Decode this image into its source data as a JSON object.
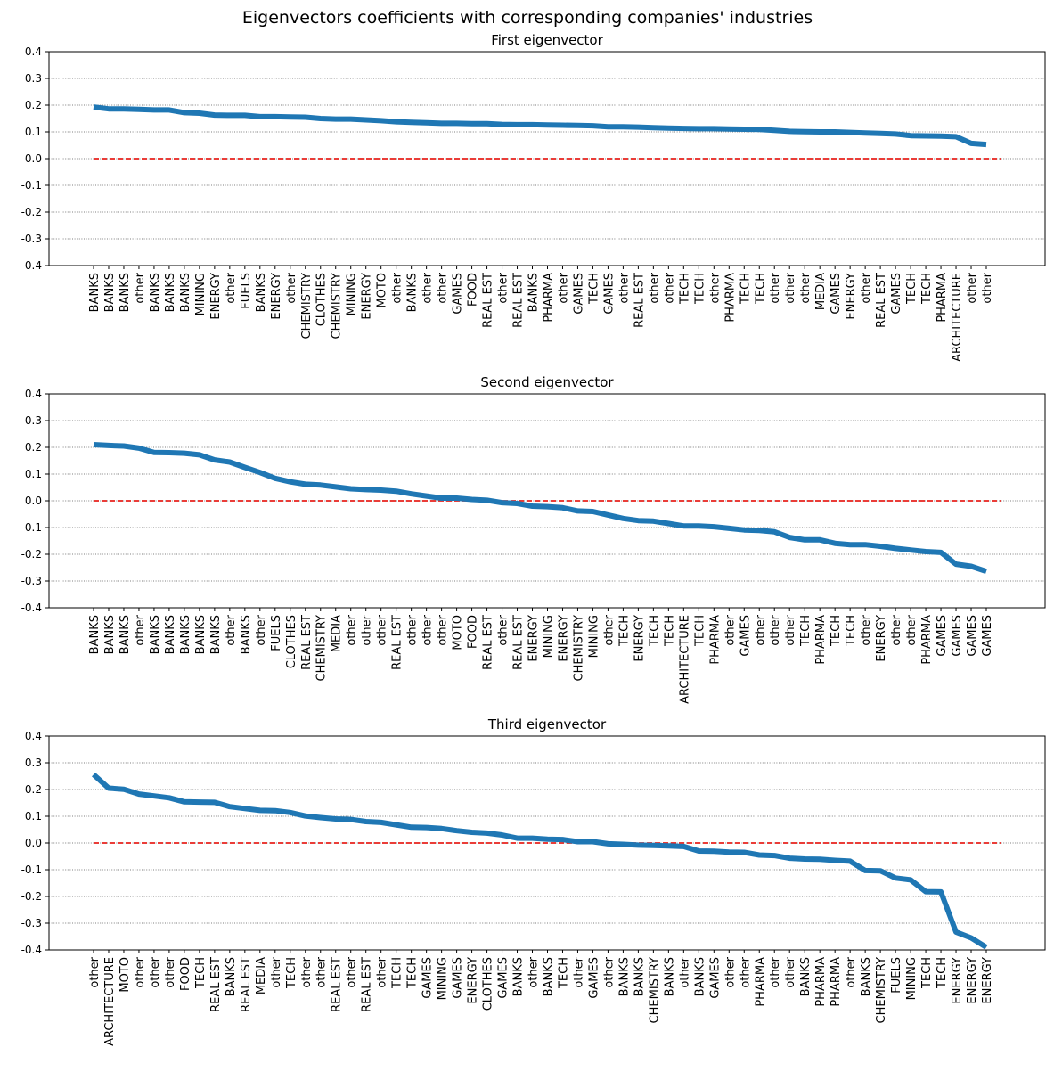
{
  "suptitle": "Eigenvectors coefficients with corresponding companies' industries",
  "chart_data": [
    {
      "type": "line",
      "title": "First eigenvector",
      "ylim": [
        -0.4,
        0.4
      ],
      "yticks": [
        -0.4,
        -0.3,
        -0.2,
        -0.1,
        0.0,
        0.1,
        0.2,
        0.3,
        0.4
      ],
      "grid": "y dotted",
      "reference_line": 0,
      "categories": [
        "BANKS",
        "BANKS",
        "BANKS",
        "other",
        "BANKS",
        "BANKS",
        "BANKS",
        "MINING",
        "ENERGY",
        "other",
        "FUELS",
        "BANKS",
        "ENERGY",
        "other",
        "CHEMISTRY",
        "CLOTHES",
        "CHEMISTRY",
        "MINING",
        "ENERGY",
        "MOTO",
        "other",
        "BANKS",
        "other",
        "other",
        "GAMES",
        "FOOD",
        "REAL EST",
        "other",
        "REAL EST",
        "BANKS",
        "PHARMA",
        "other",
        "GAMES",
        "TECH",
        "GAMES",
        "other",
        "REAL EST",
        "other",
        "other",
        "TECH",
        "TECH",
        "other",
        "PHARMA",
        "TECH",
        "TECH",
        "other",
        "other",
        "other",
        "MEDIA",
        "GAMES",
        "ENERGY",
        "other",
        "REAL EST",
        "GAMES",
        "TECH",
        "TECH",
        "PHARMA",
        "ARCHITECTURE",
        "other",
        "other"
      ],
      "values": [
        0.193,
        0.186,
        0.186,
        0.184,
        0.182,
        0.182,
        0.172,
        0.17,
        0.163,
        0.162,
        0.162,
        0.157,
        0.157,
        0.156,
        0.155,
        0.15,
        0.148,
        0.148,
        0.145,
        0.142,
        0.138,
        0.136,
        0.134,
        0.132,
        0.132,
        0.131,
        0.131,
        0.128,
        0.127,
        0.127,
        0.126,
        0.125,
        0.124,
        0.123,
        0.119,
        0.119,
        0.118,
        0.116,
        0.114,
        0.113,
        0.112,
        0.112,
        0.111,
        0.11,
        0.109,
        0.106,
        0.102,
        0.101,
        0.1,
        0.1,
        0.098,
        0.096,
        0.094,
        0.092,
        0.086,
        0.085,
        0.084,
        0.082,
        0.057,
        0.053
      ]
    },
    {
      "type": "line",
      "title": "Second eigenvector",
      "ylim": [
        -0.4,
        0.4
      ],
      "yticks": [
        -0.4,
        -0.3,
        -0.2,
        -0.1,
        0.0,
        0.1,
        0.2,
        0.3,
        0.4
      ],
      "grid": "y dotted",
      "reference_line": 0,
      "categories": [
        "BANKS",
        "BANKS",
        "BANKS",
        "other",
        "BANKS",
        "BANKS",
        "BANKS",
        "BANKS",
        "BANKS",
        "other",
        "BANKS",
        "other",
        "FUELS",
        "CLOTHES",
        "REAL EST",
        "CHEMISTRY",
        "MEDIA",
        "other",
        "other",
        "other",
        "REAL EST",
        "other",
        "other",
        "other",
        "MOTO",
        "FOOD",
        "REAL EST",
        "other",
        "REAL EST",
        "ENERGY",
        "MINING",
        "ENERGY",
        "CHEMISTRY",
        "MINING",
        "other",
        "TECH",
        "ENERGY",
        "TECH",
        "TECH",
        "ARCHITECTURE",
        "TECH",
        "PHARMA",
        "other",
        "GAMES",
        "other",
        "other",
        "other",
        "TECH",
        "PHARMA",
        "TECH",
        "TECH",
        "other",
        "ENERGY",
        "other",
        "other",
        "PHARMA",
        "GAMES",
        "GAMES",
        "GAMES",
        "GAMES"
      ],
      "values": [
        0.21,
        0.207,
        0.205,
        0.197,
        0.181,
        0.18,
        0.178,
        0.172,
        0.153,
        0.145,
        0.125,
        0.106,
        0.084,
        0.071,
        0.062,
        0.059,
        0.052,
        0.045,
        0.042,
        0.04,
        0.036,
        0.026,
        0.018,
        0.01,
        0.01,
        0.005,
        0.002,
        -0.007,
        -0.01,
        -0.02,
        -0.022,
        -0.026,
        -0.038,
        -0.04,
        -0.053,
        -0.066,
        -0.074,
        -0.076,
        -0.085,
        -0.094,
        -0.094,
        -0.097,
        -0.103,
        -0.109,
        -0.111,
        -0.116,
        -0.137,
        -0.146,
        -0.146,
        -0.159,
        -0.164,
        -0.164,
        -0.17,
        -0.178,
        -0.184,
        -0.19,
        -0.193,
        -0.237,
        -0.245,
        -0.264
      ]
    },
    {
      "type": "line",
      "title": "Third eigenvector",
      "ylim": [
        -0.4,
        0.4
      ],
      "yticks": [
        -0.4,
        -0.3,
        -0.2,
        -0.1,
        0.0,
        0.1,
        0.2,
        0.3,
        0.4
      ],
      "grid": "y dotted",
      "reference_line": 0,
      "categories": [
        "other",
        "ARCHITECTURE",
        "MOTO",
        "other",
        "other",
        "other",
        "FOOD",
        "TECH",
        "REAL EST",
        "BANKS",
        "REAL EST",
        "MEDIA",
        "other",
        "TECH",
        "other",
        "other",
        "REAL EST",
        "other",
        "REAL EST",
        "other",
        "TECH",
        "TECH",
        "GAMES",
        "MINING",
        "GAMES",
        "ENERGY",
        "CLOTHES",
        "GAMES",
        "BANKS",
        "other",
        "BANKS",
        "TECH",
        "other",
        "GAMES",
        "other",
        "BANKS",
        "BANKS",
        "CHEMISTRY",
        "BANKS",
        "other",
        "BANKS",
        "GAMES",
        "other",
        "other",
        "PHARMA",
        "other",
        "other",
        "BANKS",
        "PHARMA",
        "PHARMA",
        "other",
        "BANKS",
        "CHEMISTRY",
        "FUELS",
        "MINING",
        "TECH",
        "TECH",
        "ENERGY",
        "ENERGY",
        "ENERGY"
      ],
      "values": [
        0.256,
        0.205,
        0.201,
        0.183,
        0.176,
        0.169,
        0.154,
        0.153,
        0.152,
        0.136,
        0.129,
        0.122,
        0.121,
        0.114,
        0.101,
        0.095,
        0.09,
        0.088,
        0.08,
        0.077,
        0.068,
        0.059,
        0.058,
        0.054,
        0.046,
        0.04,
        0.037,
        0.03,
        0.018,
        0.018,
        0.014,
        0.013,
        0.005,
        0.005,
        -0.003,
        -0.005,
        -0.008,
        -0.009,
        -0.011,
        -0.013,
        -0.03,
        -0.031,
        -0.034,
        -0.035,
        -0.045,
        -0.047,
        -0.057,
        -0.06,
        -0.061,
        -0.065,
        -0.068,
        -0.103,
        -0.104,
        -0.131,
        -0.138,
        -0.182,
        -0.183,
        -0.333,
        -0.355,
        -0.39
      ]
    }
  ]
}
